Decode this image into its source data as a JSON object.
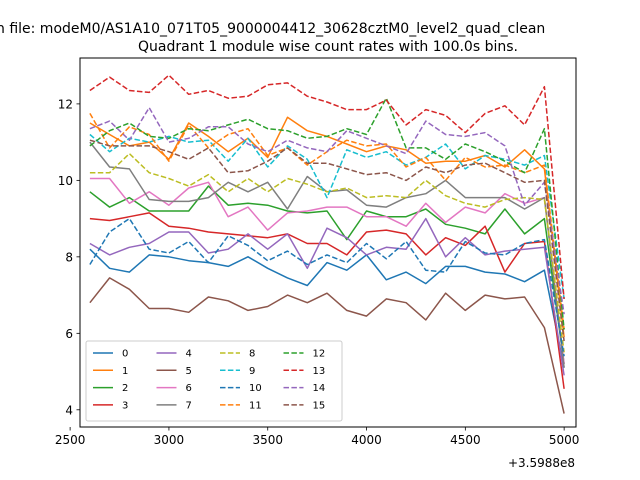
{
  "chart_data": {
    "type": "line",
    "suptitle": "n file: modeM0/AS1A10_071T05_9000004412_30628cztM0_level2_quad_clean",
    "title": "Quadrant 1 module wise count rates with 100.0s bins.",
    "xlabel": "",
    "ylabel": "",
    "x_offset_label": "+3.5988e8",
    "xlim": [
      2550,
      5060
    ],
    "ylim": [
      3.55,
      13.2
    ],
    "x_ticks": [
      2500,
      3000,
      3500,
      4000,
      4500,
      5000
    ],
    "x_tick_labels": [
      "2500",
      "3000",
      "3500",
      "4000",
      "4500",
      "5000"
    ],
    "y_ticks": [
      4,
      6,
      8,
      10,
      12
    ],
    "y_tick_labels": [
      "4",
      "6",
      "8",
      "10",
      "12"
    ],
    "x": [
      2600,
      2700,
      2800,
      2900,
      3000,
      3100,
      3200,
      3300,
      3400,
      3500,
      3600,
      3700,
      3800,
      3900,
      4000,
      4100,
      4200,
      4300,
      4400,
      4500,
      4600,
      4700,
      4800,
      4900,
      5000
    ],
    "series": [
      {
        "name": "0",
        "color": "#1f77b4",
        "dash": "solid",
        "values": [
          8.2,
          7.7,
          7.6,
          8.05,
          8.0,
          7.9,
          7.85,
          7.75,
          8.0,
          7.7,
          7.45,
          7.25,
          7.85,
          7.65,
          8.05,
          7.4,
          7.6,
          7.3,
          7.75,
          7.75,
          7.6,
          7.55,
          7.35,
          7.65,
          5.1
        ]
      },
      {
        "name": "1",
        "color": "#ff7f0e",
        "dash": "solid",
        "values": [
          11.5,
          11.2,
          10.9,
          11.0,
          10.55,
          11.5,
          11.15,
          10.75,
          11.1,
          10.6,
          11.65,
          11.3,
          11.15,
          10.95,
          10.75,
          10.9,
          10.8,
          10.45,
          10.5,
          10.5,
          10.65,
          10.35,
          10.8,
          10.3,
          5.9
        ]
      },
      {
        "name": "2",
        "color": "#2ca02c",
        "dash": "solid",
        "values": [
          9.7,
          9.3,
          9.55,
          9.2,
          9.2,
          9.2,
          9.85,
          9.35,
          9.4,
          9.35,
          9.2,
          9.15,
          9.2,
          8.45,
          9.2,
          9.05,
          9.05,
          9.25,
          8.85,
          8.75,
          8.6,
          9.25,
          8.6,
          9.0,
          5.2
        ]
      },
      {
        "name": "3",
        "color": "#d62728",
        "dash": "solid",
        "values": [
          9.0,
          8.95,
          9.05,
          9.15,
          8.8,
          8.75,
          8.65,
          8.6,
          8.55,
          8.5,
          8.6,
          8.35,
          8.35,
          8.05,
          8.65,
          8.7,
          8.6,
          8.05,
          8.5,
          8.3,
          8.8,
          7.6,
          8.35,
          8.4,
          4.55
        ]
      },
      {
        "name": "4",
        "color": "#9467bd",
        "dash": "solid",
        "values": [
          8.35,
          8.05,
          8.25,
          8.35,
          8.65,
          8.65,
          8.1,
          8.2,
          8.6,
          8.2,
          8.6,
          7.7,
          8.75,
          8.5,
          8.05,
          8.25,
          8.2,
          9.0,
          8.0,
          8.5,
          8.05,
          8.15,
          8.2,
          8.25,
          4.9
        ]
      },
      {
        "name": "5",
        "color": "#8c564b",
        "dash": "solid",
        "values": [
          6.8,
          7.45,
          7.15,
          6.65,
          6.65,
          6.55,
          6.95,
          6.85,
          6.6,
          6.7,
          7.0,
          6.8,
          7.05,
          6.6,
          6.45,
          6.9,
          6.8,
          6.35,
          7.05,
          6.6,
          7.0,
          6.9,
          6.95,
          6.15,
          3.9
        ]
      },
      {
        "name": "6",
        "color": "#e377c2",
        "dash": "solid",
        "values": [
          10.05,
          10.05,
          9.4,
          9.7,
          9.35,
          9.8,
          9.95,
          9.05,
          9.3,
          8.7,
          9.15,
          9.2,
          9.3,
          9.3,
          9.05,
          9.05,
          8.8,
          9.4,
          8.9,
          9.3,
          9.15,
          9.65,
          9.4,
          9.55,
          5.2
        ]
      },
      {
        "name": "7",
        "color": "#7f7f7f",
        "dash": "solid",
        "values": [
          11.0,
          10.35,
          10.3,
          9.5,
          9.45,
          9.45,
          9.55,
          9.95,
          9.7,
          9.95,
          9.25,
          10.1,
          9.7,
          9.75,
          9.35,
          9.3,
          9.55,
          9.65,
          10.0,
          9.55,
          9.55,
          9.55,
          9.25,
          9.55,
          5.1
        ]
      },
      {
        "name": "8",
        "color": "#bcbd22",
        "dash": "dashed",
        "values": [
          10.2,
          10.2,
          10.7,
          10.2,
          10.05,
          9.85,
          10.15,
          9.7,
          10.05,
          9.7,
          10.05,
          9.9,
          9.7,
          9.8,
          9.55,
          9.6,
          9.55,
          10.0,
          9.6,
          9.4,
          9.3,
          9.5,
          9.55,
          9.5,
          5.5
        ]
      },
      {
        "name": "9",
        "color": "#17becf",
        "dash": "dashed",
        "values": [
          11.2,
          10.75,
          11.1,
          11.0,
          11.15,
          11.0,
          11.05,
          10.5,
          11.1,
          10.35,
          10.9,
          10.55,
          9.55,
          10.8,
          10.6,
          10.75,
          10.4,
          10.6,
          10.95,
          10.3,
          10.65,
          10.55,
          10.4,
          10.65,
          6.9
        ]
      },
      {
        "name": "10",
        "color": "#1f77b4",
        "dash": "dashed",
        "values": [
          7.8,
          8.65,
          9.0,
          8.2,
          8.1,
          8.4,
          7.85,
          8.55,
          8.3,
          7.9,
          8.15,
          7.8,
          8.05,
          7.85,
          8.35,
          7.95,
          8.4,
          7.65,
          7.6,
          8.4,
          8.1,
          8.05,
          8.35,
          8.45,
          5.4
        ]
      },
      {
        "name": "11",
        "color": "#ff7f0e",
        "dash": "dashed",
        "values": [
          11.75,
          10.85,
          11.4,
          11.2,
          10.5,
          11.45,
          10.85,
          11.2,
          11.35,
          10.65,
          10.85,
          10.4,
          10.75,
          11.05,
          10.9,
          10.95,
          10.35,
          10.6,
          10.0,
          10.6,
          10.35,
          10.4,
          10.2,
          10.4,
          6.1
        ]
      },
      {
        "name": "12",
        "color": "#2ca02c",
        "dash": "dashed",
        "values": [
          10.9,
          11.3,
          11.5,
          11.15,
          11.1,
          11.35,
          11.3,
          11.45,
          11.6,
          11.35,
          11.3,
          11.1,
          11.15,
          11.35,
          11.2,
          12.15,
          10.85,
          10.85,
          10.55,
          10.95,
          10.75,
          10.5,
          10.2,
          11.35,
          6.1
        ]
      },
      {
        "name": "13",
        "color": "#d62728",
        "dash": "dashed",
        "values": [
          12.35,
          12.7,
          12.35,
          12.3,
          12.75,
          12.25,
          12.35,
          12.15,
          12.2,
          12.5,
          12.55,
          12.2,
          12.05,
          11.85,
          11.85,
          12.1,
          11.45,
          11.85,
          11.7,
          11.25,
          11.75,
          11.95,
          11.45,
          12.45,
          6.9
        ]
      },
      {
        "name": "14",
        "color": "#9467bd",
        "dash": "dashed",
        "values": [
          11.35,
          11.55,
          11.05,
          11.9,
          11.0,
          11.1,
          11.4,
          11.4,
          10.95,
          10.75,
          11.05,
          10.85,
          10.75,
          11.3,
          11.1,
          10.9,
          10.7,
          11.55,
          11.2,
          11.15,
          11.25,
          10.9,
          9.35,
          9.95,
          6.5
        ]
      },
      {
        "name": "15",
        "color": "#8c564b",
        "dash": "dashed",
        "values": [
          11.05,
          10.9,
          10.9,
          10.9,
          10.75,
          10.55,
          10.85,
          10.2,
          10.25,
          10.5,
          10.85,
          10.45,
          10.45,
          10.3,
          10.15,
          10.2,
          10.0,
          10.35,
          10.2,
          10.4,
          10.45,
          10.2,
          9.95,
          10.0,
          5.8
        ]
      }
    ],
    "legend_placement": "lower-left",
    "legend_columns": 4,
    "grid": false
  }
}
